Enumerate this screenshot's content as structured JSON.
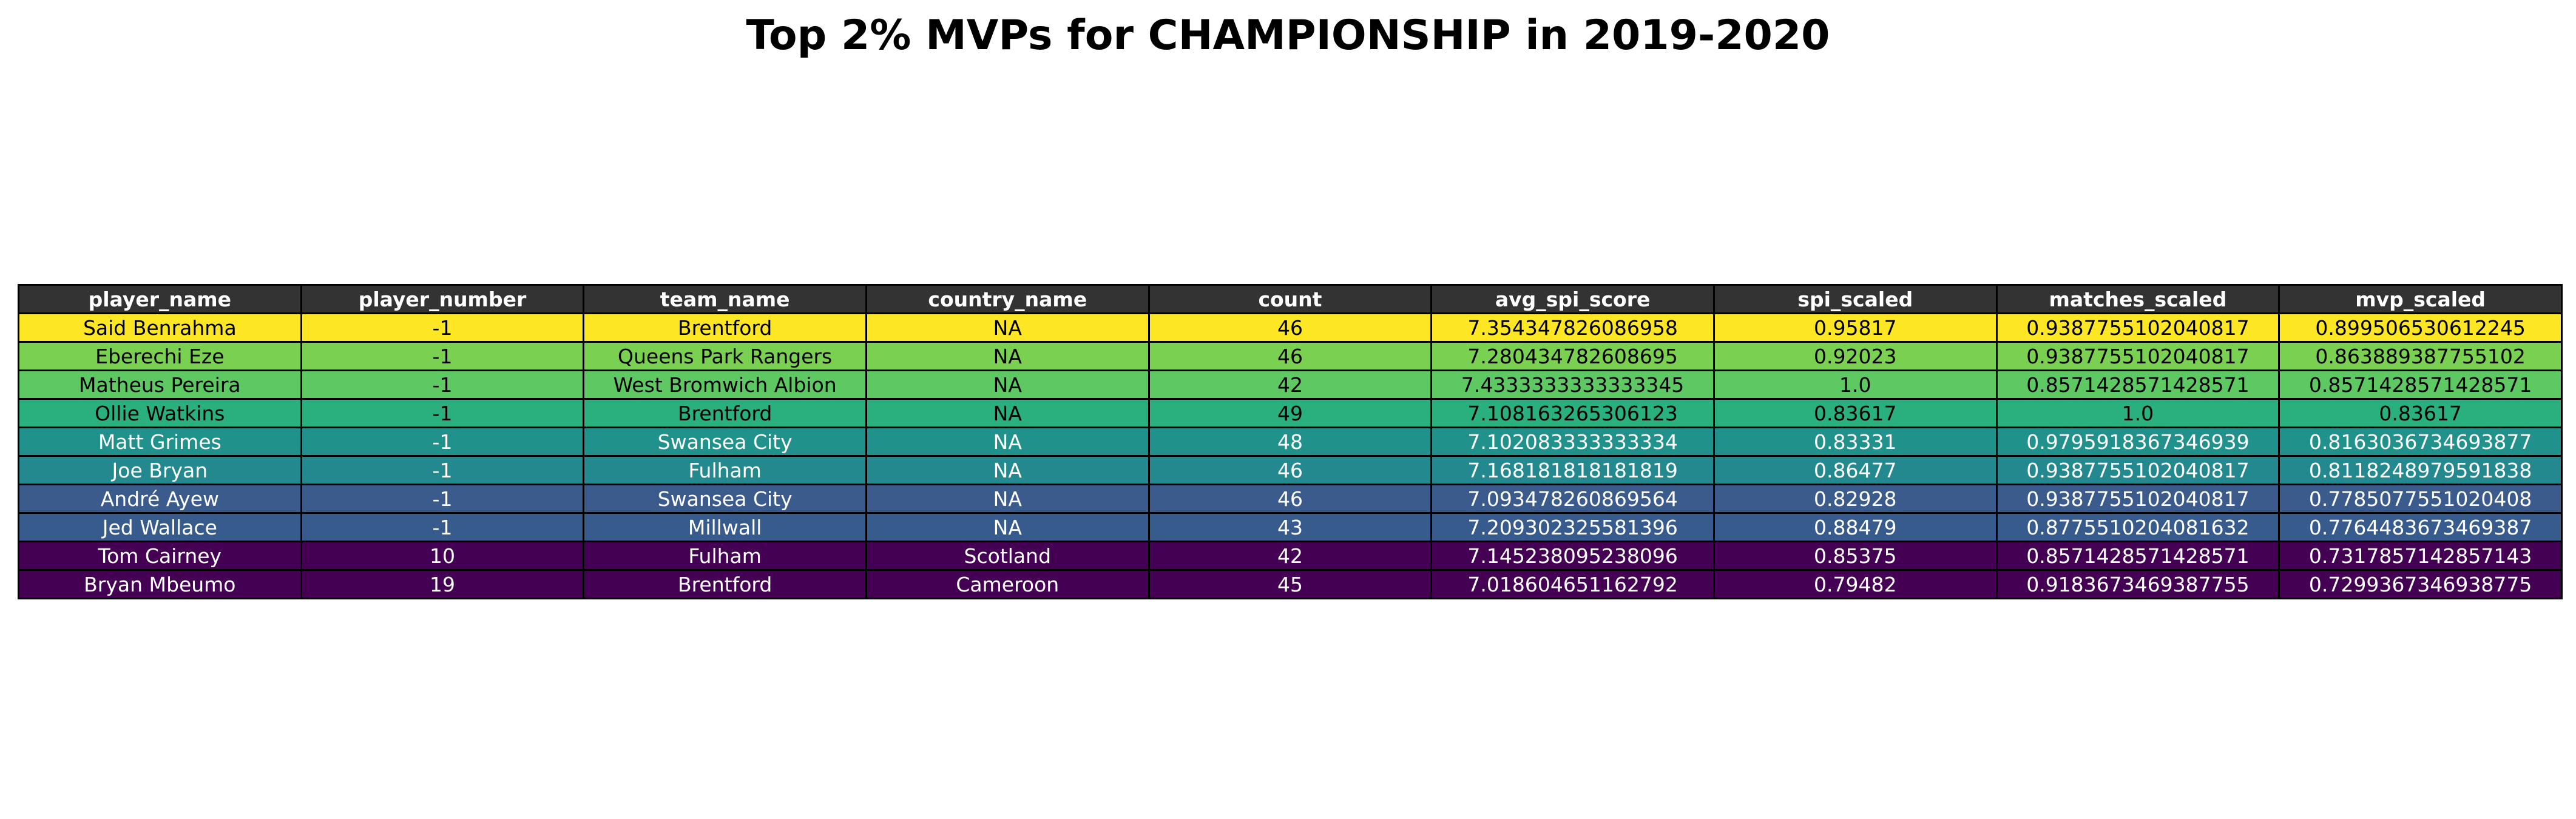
{
  "chart_data": {
    "type": "table",
    "title": "Top 2% MVPs for CHAMPIONSHIP in 2019-2020",
    "columns": [
      "player_name",
      "player_number",
      "team_name",
      "country_name",
      "count",
      "avg_spi_score",
      "spi_scaled",
      "matches_scaled",
      "mvp_scaled"
    ],
    "rows": [
      {
        "cells": [
          "Said Benrahma",
          "-1",
          "Brentford",
          "NA",
          "46",
          "7.354347826086958",
          "0.95817",
          "0.9387755102040817",
          "0.899506530612245"
        ],
        "bg": "#fde725",
        "fg": "#000000"
      },
      {
        "cells": [
          "Eberechi Eze",
          "-1",
          "Queens Park Rangers",
          "NA",
          "46",
          "7.280434782608695",
          "0.92023",
          "0.9387755102040817",
          "0.863889387755102"
        ],
        "bg": "#7ad151",
        "fg": "#000000"
      },
      {
        "cells": [
          "Matheus Pereira",
          "-1",
          "West Bromwich Albion",
          "NA",
          "42",
          "7.4333333333333345",
          "1.0",
          "0.8571428571428571",
          "0.8571428571428571"
        ],
        "bg": "#5ec962",
        "fg": "#000000"
      },
      {
        "cells": [
          "Ollie Watkins",
          "-1",
          "Brentford",
          "NA",
          "49",
          "7.108163265306123",
          "0.83617",
          "1.0",
          "0.83617"
        ],
        "bg": "#2aaf7f",
        "fg": "#000000"
      },
      {
        "cells": [
          "Matt Grimes",
          "-1",
          "Swansea City",
          "NA",
          "48",
          "7.102083333333334",
          "0.83331",
          "0.9795918367346939",
          "0.8163036734693877"
        ],
        "bg": "#21918c",
        "fg": "#ffffff"
      },
      {
        "cells": [
          "Joe Bryan",
          "-1",
          "Fulham",
          "NA",
          "46",
          "7.168181818181819",
          "0.86477",
          "0.9387755102040817",
          "0.8118248979591838"
        ],
        "bg": "#23898e",
        "fg": "#ffffff"
      },
      {
        "cells": [
          "André Ayew",
          "-1",
          "Swansea City",
          "NA",
          "46",
          "7.093478260869564",
          "0.82928",
          "0.9387755102040817",
          "0.7785077551020408"
        ],
        "bg": "#3b5b8c",
        "fg": "#ffffff"
      },
      {
        "cells": [
          "Jed Wallace",
          "-1",
          "Millwall",
          "NA",
          "43",
          "7.209302325581396",
          "0.88479",
          "0.8775510204081632",
          "0.7764483673469387"
        ],
        "bg": "#375b8d",
        "fg": "#ffffff"
      },
      {
        "cells": [
          "Tom Cairney",
          "10",
          "Fulham",
          "Scotland",
          "42",
          "7.145238095238096",
          "0.85375",
          "0.8571428571428571",
          "0.7317857142857143"
        ],
        "bg": "#440154",
        "fg": "#ffffff"
      },
      {
        "cells": [
          "Bryan Mbeumo",
          "19",
          "Brentford",
          "Cameroon",
          "45",
          "7.018604651162792",
          "0.79482",
          "0.9183673469387755",
          "0.7299367346938775"
        ],
        "bg": "#440154",
        "fg": "#ffffff"
      }
    ],
    "header_bg": "#333333",
    "header_fg": "#ffffff",
    "colormap": "viridis"
  }
}
